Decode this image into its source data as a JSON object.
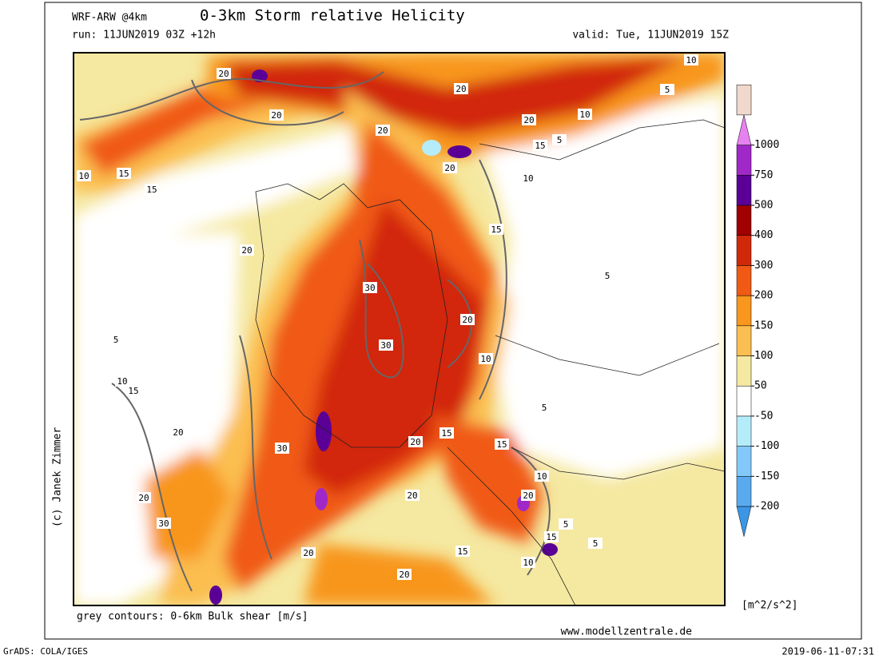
{
  "header": {
    "model": "WRF-ARW @4km",
    "title": "0-3km Storm relative Helicity",
    "run": "run: 11JUN2019 03Z +12h",
    "valid": "valid: Tue, 11JUN2019 15Z"
  },
  "map": {
    "contour_labels": [
      20,
      20,
      10,
      15,
      15,
      10,
      5,
      20,
      20,
      10,
      20,
      15,
      5,
      20,
      10,
      15,
      20,
      30,
      5,
      20,
      30,
      10,
      5,
      10,
      15,
      20,
      5,
      20,
      15,
      15,
      30,
      10,
      20,
      20,
      20,
      30,
      5,
      15,
      15,
      20,
      10,
      20,
      5
    ]
  },
  "legend": {
    "levels": [
      -200,
      -150,
      -100,
      -50,
      50,
      100,
      150,
      200,
      300,
      400,
      500,
      750,
      1000
    ],
    "colors": [
      "#3c96e6",
      "#5aaaf0",
      "#82c8fa",
      "#b4ecfa",
      "#ffffff",
      "#f5e8a0",
      "#fbbe50",
      "#f8961e",
      "#f05a14",
      "#d2280a",
      "#a00000",
      "#5a0096",
      "#a028c8",
      "#e682f0",
      "#f0d8cc"
    ],
    "unit": "[m^2/s^2]"
  },
  "footer": {
    "contour_note": "grey contours: 0-6km Bulk shear [m/s]",
    "website": "www.modellzentrale.de",
    "credit": "(c) Janek Zimmer",
    "software": "GrADS: COLA/IGES",
    "timestamp": "2019-06-11-07:31"
  }
}
